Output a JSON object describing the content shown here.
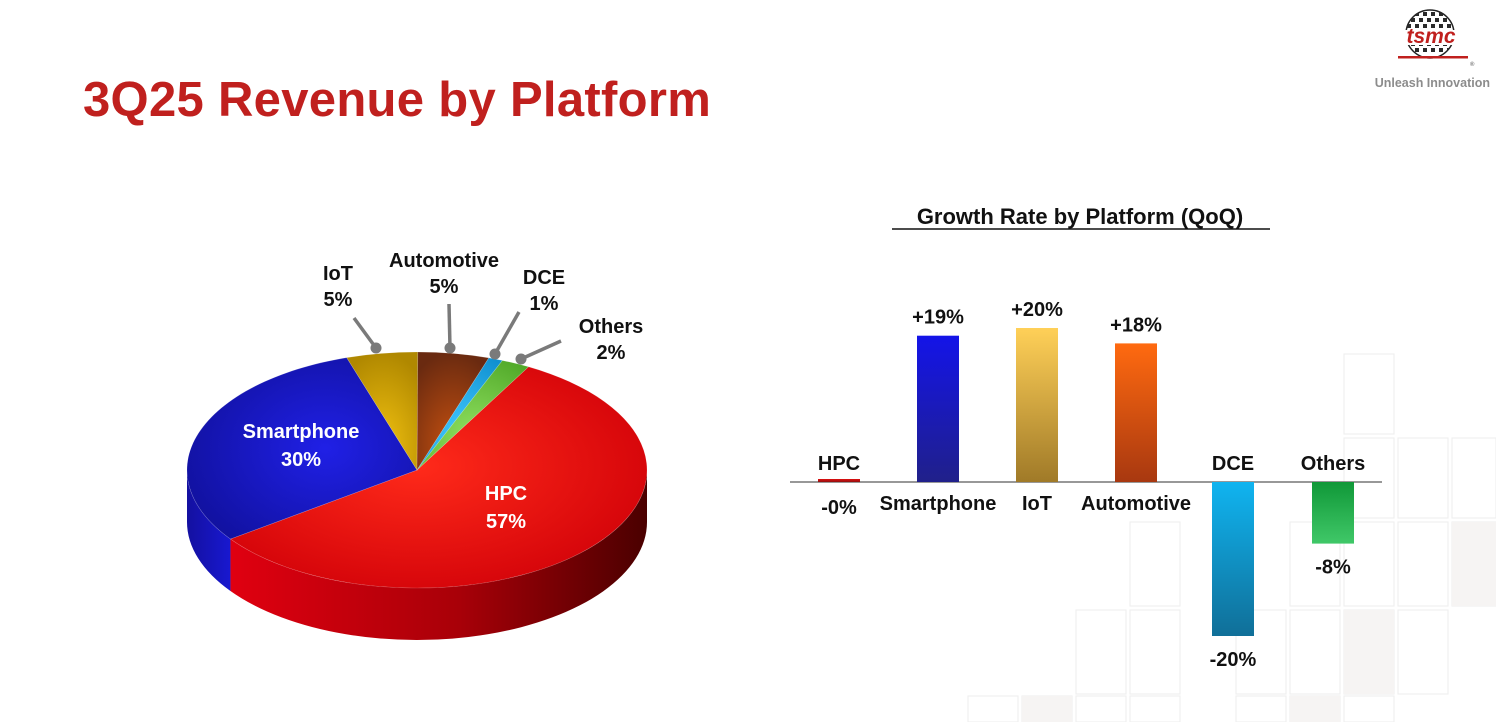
{
  "page": {
    "title": "3Q25 Revenue by Platform"
  },
  "brand": {
    "logo_text": "tsmc",
    "tagline": "Unleash Innovation",
    "registered_mark": "®",
    "accent": "#c0201e"
  },
  "chart_data": [
    {
      "type": "pie",
      "title": "",
      "categories": [
        "HPC",
        "Smartphone",
        "IoT",
        "Automotive",
        "DCE",
        "Others"
      ],
      "values": [
        57,
        30,
        5,
        5,
        1,
        2
      ],
      "value_labels": [
        "57%",
        "30%",
        "5%",
        "5%",
        "1%",
        "2%"
      ],
      "colors": [
        "#e80b0b",
        "#1a14c8",
        "#e0b000",
        "#a64010",
        "#1ca8e8",
        "#6cc838"
      ],
      "legend": "none"
    },
    {
      "type": "bar",
      "title": "Growth Rate by Platform (QoQ)",
      "categories": [
        "HPC",
        "Smartphone",
        "IoT",
        "Automotive",
        "DCE",
        "Others"
      ],
      "values": [
        0,
        19,
        20,
        18,
        -20,
        -8
      ],
      "value_labels": [
        "-0%",
        "+19%",
        "+20%",
        "+18%",
        "-20%",
        "-8%"
      ],
      "colors": [
        "#d01010",
        "#1414d8",
        "#f8c850",
        "#f05a0a",
        "#10a8e8",
        "#18a040"
      ],
      "grid": false,
      "legend": "none"
    }
  ]
}
